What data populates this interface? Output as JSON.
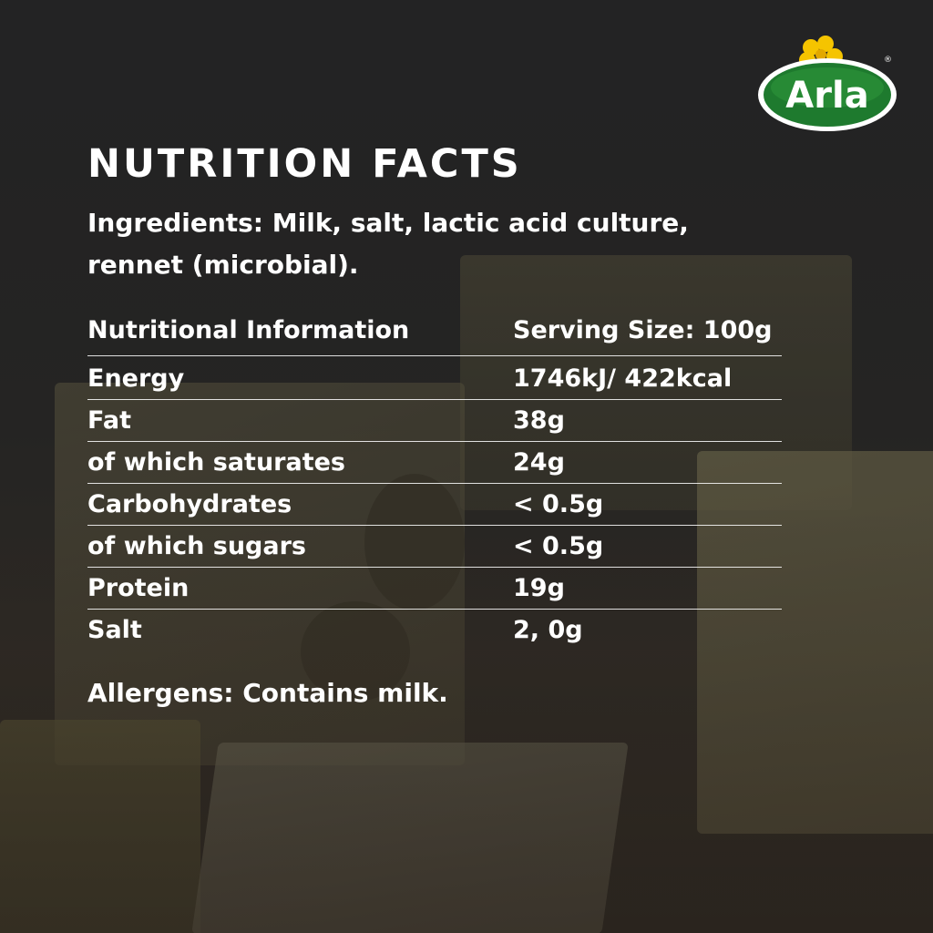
{
  "brand": {
    "logo_text": "Arla",
    "registered": "®",
    "green": "#1e7a2e",
    "yellow": "#f5c400"
  },
  "title": "NUTRITION FACTS",
  "ingredients": "Ingredients: Milk, salt, lactic acid culture, rennet (microbial).",
  "table": {
    "header": {
      "label": "Nutritional Information",
      "value": "Serving Size: 100g"
    },
    "rows": [
      {
        "label": "Energy",
        "value": "1746kJ/ 422kcal"
      },
      {
        "label": "Fat",
        "value": "38g"
      },
      {
        "label": "of which saturates",
        "value": "24g"
      },
      {
        "label": "Carbohydrates",
        "value": "< 0.5g"
      },
      {
        "label": "of which sugars",
        "value": "< 0.5g"
      },
      {
        "label": "Protein",
        "value": "19g"
      },
      {
        "label": "Salt",
        "value": "2, 0g"
      }
    ]
  },
  "allergens": "Allergens: Contains milk."
}
